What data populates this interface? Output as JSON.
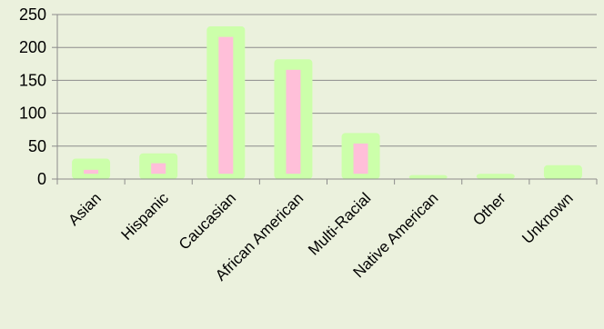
{
  "chart_data": {
    "type": "bar",
    "categories": [
      "Asian",
      "Hispanic",
      "Caucasian",
      "African American",
      "Multi-Racial",
      "Native American",
      "Other",
      "Unknown"
    ],
    "series": [
      {
        "values": [
          31,
          39,
          232,
          182,
          70,
          6,
          8,
          21
        ],
        "color": "#ccffaa"
      },
      {
        "values": [
          14,
          24,
          216,
          166,
          54,
          0,
          0,
          0
        ],
        "color": "#ffbfd9",
        "base": 8
      }
    ],
    "ylim": [
      0,
      250
    ],
    "yticks": [
      0,
      50,
      100,
      150,
      200,
      250
    ],
    "title": "",
    "xlabel": "",
    "ylabel": "",
    "grid": true,
    "legend": "none",
    "background_color": "#ebf1dd",
    "grid_color": "#8c8c8c"
  }
}
